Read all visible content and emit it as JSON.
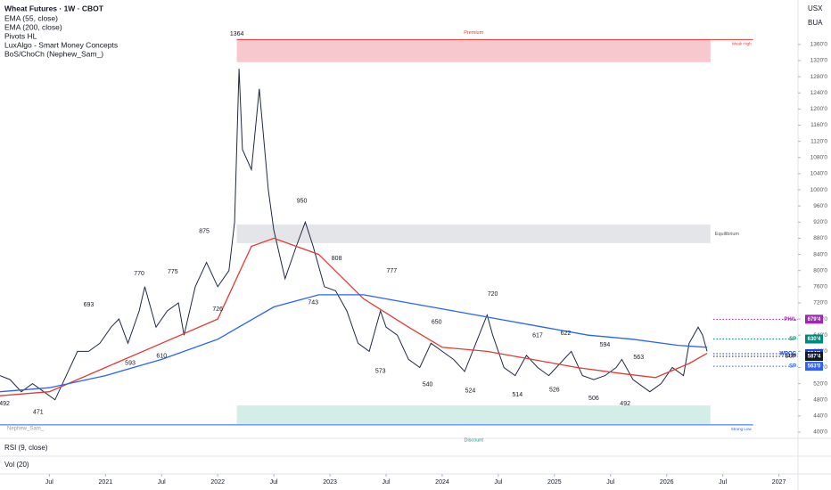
{
  "chart_data": {
    "type": "line",
    "title": "Wheat Futures · 1W · CBOT",
    "indicators": [
      "EMA (55, close)",
      "EMA (200, close)",
      "Pivots HL",
      "LuxAlgo - Smart Money Concepts",
      "BoS/ChoCh (Nephew_Sam_)"
    ],
    "currency": "USX",
    "unit": "BUA",
    "panes": [
      "RSI (9, close)",
      "Vol (20)"
    ],
    "watermark": "Nephew_Sam_",
    "xlim": [
      2020.06,
      2027.17
    ],
    "ylim": [
      389,
      1470
    ],
    "xticks": [
      {
        "value": 2020.5,
        "label": "Jul"
      },
      2021,
      {
        "value": 2021.5,
        "label": "Jul"
      },
      2022,
      {
        "value": 2022.5,
        "label": "Jul"
      },
      2023,
      {
        "value": 2023.5,
        "label": "Jul"
      },
      2024,
      {
        "value": 2024.5,
        "label": "Jul"
      },
      2025,
      {
        "value": 2025.5,
        "label": "Jul"
      },
      2026,
      {
        "value": 2026.5,
        "label": "Jul"
      },
      2027
    ],
    "yticks": [
      {
        "value": 400,
        "label": "400'0"
      },
      {
        "value": 440,
        "label": "440'0"
      },
      {
        "value": 480,
        "label": "480'0"
      },
      {
        "value": 520,
        "label": "520'0"
      },
      {
        "value": 560,
        "label": "560'0"
      },
      {
        "value": 600,
        "label": "600'0"
      },
      {
        "value": 640,
        "label": "640'0"
      },
      {
        "value": 680,
        "label": "680'0"
      },
      {
        "value": 720,
        "label": "720'0"
      },
      {
        "value": 760,
        "label": "760'0"
      },
      {
        "value": 800,
        "label": "800'0"
      },
      {
        "value": 840,
        "label": "840'0"
      },
      {
        "value": 880,
        "label": "880'0"
      },
      {
        "value": 920,
        "label": "920'0"
      },
      {
        "value": 960,
        "label": "960'0"
      },
      {
        "value": 1000,
        "label": "1000'0"
      },
      {
        "value": 1040,
        "label": "1040'0"
      },
      {
        "value": 1080,
        "label": "1080'0"
      },
      {
        "value": 1120,
        "label": "1120'0"
      },
      {
        "value": 1160,
        "label": "1160'0"
      },
      {
        "value": 1200,
        "label": "1200'0"
      },
      {
        "value": 1240,
        "label": "1240'0"
      },
      {
        "value": 1280,
        "label": "1280'0"
      },
      {
        "value": 1320,
        "label": "1320'0"
      },
      {
        "value": 1360,
        "label": "1360'0"
      }
    ],
    "series": [
      {
        "name": "Price",
        "color": "#1f2a44",
        "x": [
          2020.06,
          2020.15,
          2020.25,
          2020.35,
          2020.45,
          2020.55,
          2020.65,
          2020.75,
          2020.85,
          2020.95,
          2021.05,
          2021.12,
          2021.2,
          2021.3,
          2021.35,
          2021.45,
          2021.55,
          2021.65,
          2021.7,
          2021.8,
          2021.9,
          2022.0,
          2022.1,
          2022.15,
          2022.19,
          2022.22,
          2022.3,
          2022.37,
          2022.45,
          2022.5,
          2022.6,
          2022.7,
          2022.78,
          2022.85,
          2022.95,
          2023.05,
          2023.15,
          2023.25,
          2023.35,
          2023.45,
          2023.5,
          2023.6,
          2023.7,
          2023.8,
          2023.9,
          2024.0,
          2024.1,
          2024.2,
          2024.3,
          2024.4,
          2024.45,
          2024.55,
          2024.65,
          2024.75,
          2024.85,
          2024.95,
          2025.05,
          2025.15,
          2025.25,
          2025.35,
          2025.45,
          2025.55,
          2025.6,
          2025.7,
          2025.8,
          2025.85,
          2025.95,
          2026.05,
          2026.15,
          2026.2,
          2026.28,
          2026.32,
          2026.36
        ],
        "values": [
          540,
          530,
          500,
          520,
          500,
          480,
          540,
          600,
          600,
          620,
          660,
          680,
          620,
          700,
          760,
          660,
          700,
          720,
          640,
          760,
          820,
          760,
          800,
          920,
          1300,
          1100,
          1050,
          1250,
          1000,
          900,
          780,
          860,
          920,
          860,
          760,
          750,
          700,
          620,
          600,
          700,
          660,
          640,
          580,
          560,
          620,
          600,
          580,
          550,
          620,
          690,
          640,
          560,
          540,
          590,
          560,
          540,
          570,
          600,
          540,
          530,
          540,
          560,
          580,
          530,
          510,
          500,
          520,
          560,
          540,
          620,
          660,
          640,
          600
        ]
      },
      {
        "name": "EMA (55, close)",
        "color": "#e53935",
        "x": [
          2020.06,
          2020.5,
          2021.0,
          2021.5,
          2022.0,
          2022.3,
          2022.5,
          2022.9,
          2023.3,
          2023.7,
          2024.0,
          2024.4,
          2024.8,
          2025.2,
          2025.6,
          2025.9,
          2026.2,
          2026.36
        ],
        "values": [
          490,
          500,
          560,
          620,
          680,
          860,
          880,
          840,
          730,
          660,
          610,
          600,
          580,
          560,
          545,
          535,
          570,
          595
        ]
      },
      {
        "name": "EMA (200, close)",
        "color": "#2962ff",
        "x": [
          2020.06,
          2020.5,
          2021.0,
          2021.5,
          2022.0,
          2022.5,
          2022.9,
          2023.3,
          2023.7,
          2024.1,
          2024.5,
          2024.9,
          2025.3,
          2025.7,
          2026.1,
          2026.36
        ],
        "values": [
          500,
          510,
          540,
          580,
          630,
          710,
          740,
          740,
          720,
          700,
          680,
          660,
          640,
          630,
          615,
          610
        ]
      }
    ],
    "pivot_highs": {
      "x": [
        2020.85,
        2021.3,
        2021.6,
        2021.88,
        2022.17,
        2022.75,
        2023.06,
        2023.55,
        2023.95,
        2024.45,
        2024.85,
        2025.1,
        2025.45,
        2025.75
      ],
      "values": [
        693,
        770,
        775,
        875,
        1364,
        950,
        808,
        777,
        650,
        720,
        617,
        622,
        594,
        563
      ]
    },
    "pivot_lows": {
      "x": [
        2020.1,
        2020.4,
        2021.22,
        2021.5,
        2022.0,
        2022.85,
        2023.45,
        2023.87,
        2024.25,
        2024.67,
        2025.0,
        2025.35,
        2025.63
      ],
      "values": [
        492,
        471,
        593,
        610,
        726,
        743,
        573,
        540,
        524,
        514,
        526,
        506,
        492
      ]
    },
    "zones": [
      {
        "name": "Premium",
        "color": "#f8c8cf",
        "text_color": "#e53935",
        "x": [
          2022.17,
          2026.39
        ],
        "values": [
          1316,
          1372
        ]
      },
      {
        "name": "Equilibrium",
        "color": "#e4e5e8",
        "text_color": "#555",
        "x": [
          2022.17,
          2026.39
        ],
        "values": [
          868,
          914
        ]
      },
      {
        "name": "Discount",
        "color": "#d3eee6",
        "text_color": "#089981",
        "x": [
          2022.17,
          2026.39
        ],
        "values": [
          420,
          466
        ]
      }
    ],
    "levels": [
      {
        "name": "Weak High",
        "color": "#e53935",
        "value": 1372,
        "x": [
          2022.17,
          2026.77
        ]
      },
      {
        "name": "Strong Low",
        "color": "#2962ff",
        "value": 418,
        "x": [
          2020.06,
          2026.77
        ]
      }
    ],
    "badges": [
      {
        "value": 679.5,
        "label": "679'4",
        "color": "#9c27b0",
        "tag": "PH/L"
      },
      {
        "value": 630.5,
        "label": "630'4",
        "color": "#00897b",
        "tag": "SP"
      },
      {
        "value": 594.25,
        "label": "594'2",
        "color": "#1e3fd4",
        "tag": "WPOC"
      },
      {
        "value": 587.5,
        "label": "587'4",
        "color": "#131722",
        "tag": "SUP"
      },
      {
        "value": 563,
        "label": "563'0",
        "color": "#2962ff",
        "tag": "SP"
      }
    ]
  }
}
